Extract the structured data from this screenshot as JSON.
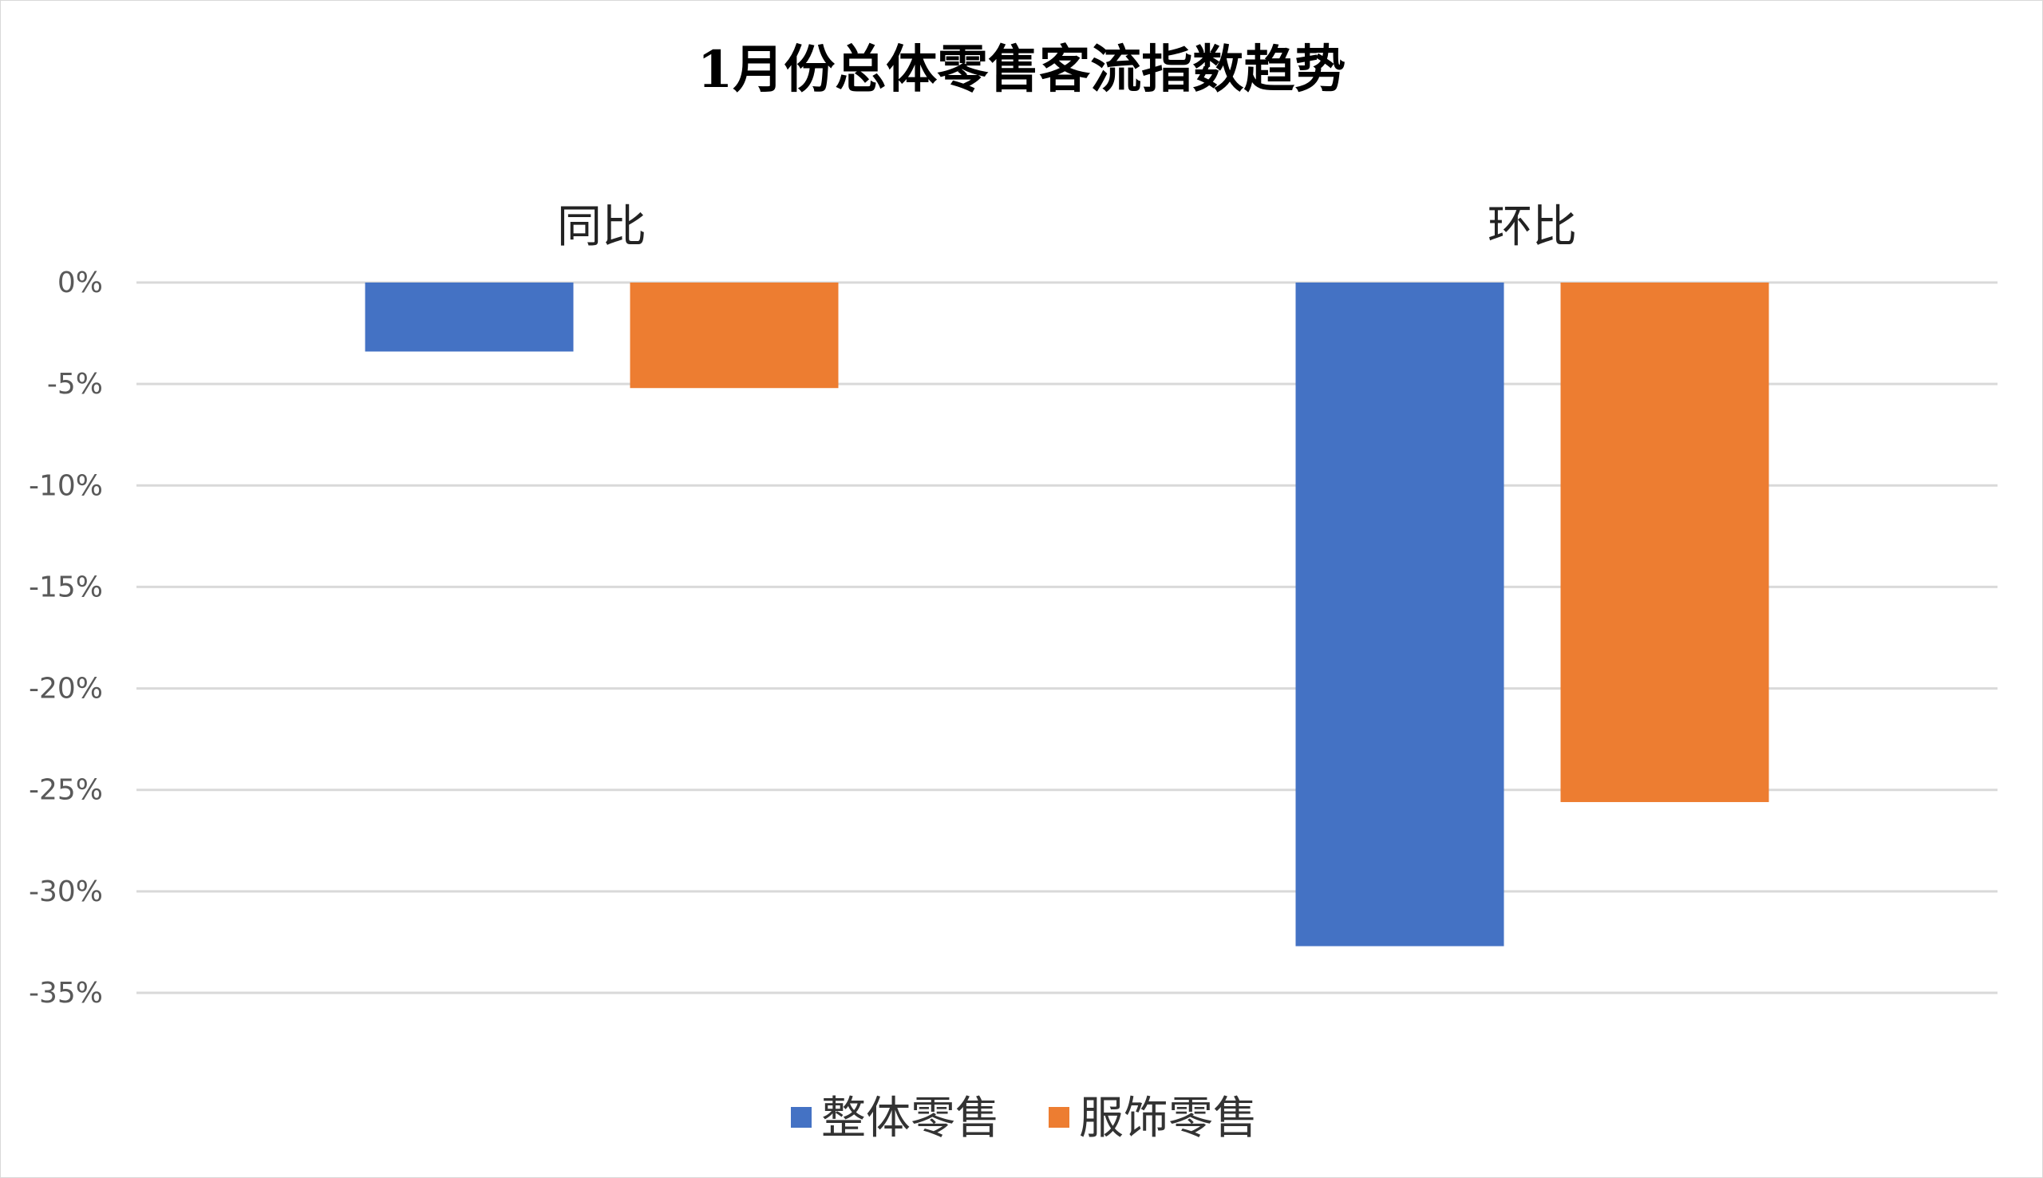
{
  "chart_data": {
    "type": "bar",
    "title": "1月份总体零售客流指数趋势",
    "categories": [
      "同比",
      "环比"
    ],
    "category_axis_position": "top",
    "series": [
      {
        "name": "整体零售",
        "color": "#4472C4",
        "values": [
          -3.4,
          -32.7
        ]
      },
      {
        "name": "服饰零售",
        "color": "#ED7D31",
        "values": [
          -5.2,
          -25.6
        ]
      }
    ],
    "xlabel": "",
    "ylabel": "",
    "ylim": [
      -35,
      0
    ],
    "y_ticks": [
      0,
      -5,
      -10,
      -15,
      -20,
      -25,
      -30,
      -35
    ],
    "y_tick_labels": [
      "0%",
      "-5%",
      "-10%",
      "-15%",
      "-20%",
      "-25%",
      "-30%",
      "-35%"
    ],
    "grid": true,
    "legend_position": "bottom"
  }
}
